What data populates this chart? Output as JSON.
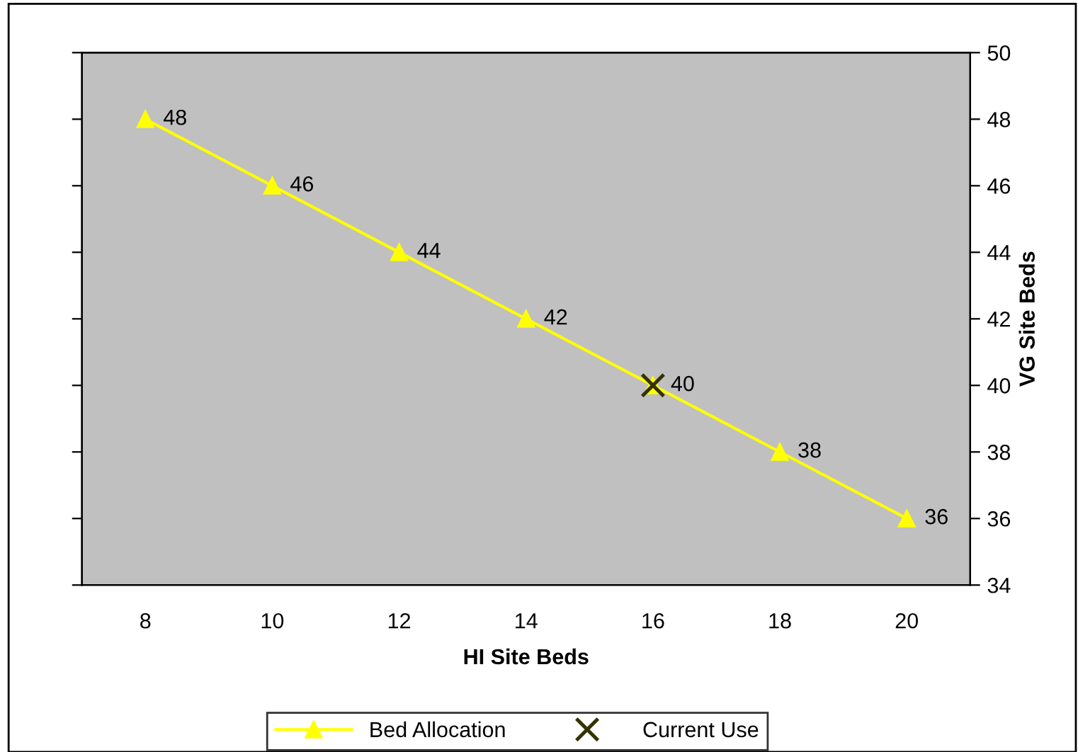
{
  "chart_data": {
    "type": "line",
    "xlabel": "HI Site Beds",
    "y2label": "VG Site Beds",
    "categories": [
      "8",
      "10",
      "12",
      "14",
      "16",
      "18",
      "20"
    ],
    "series": [
      {
        "name": "Bed Allocation",
        "color": "#ffff00",
        "marker": "triangle",
        "axis": "y2",
        "values": [
          48,
          46,
          44,
          42,
          40,
          38,
          36
        ],
        "value_labels": [
          "48",
          "46",
          "44",
          "42",
          "40",
          "38",
          "36"
        ]
      },
      {
        "name": "Current Use",
        "type": "scatter",
        "color": "#333300",
        "marker": "cross",
        "axis": "y2",
        "values": [
          null,
          null,
          null,
          null,
          40,
          null,
          null
        ]
      }
    ],
    "y2lim": [
      34,
      50
    ],
    "y2ticks": [
      34,
      36,
      38,
      40,
      42,
      44,
      46,
      48,
      50
    ],
    "grid": false,
    "legend": "bottom"
  }
}
